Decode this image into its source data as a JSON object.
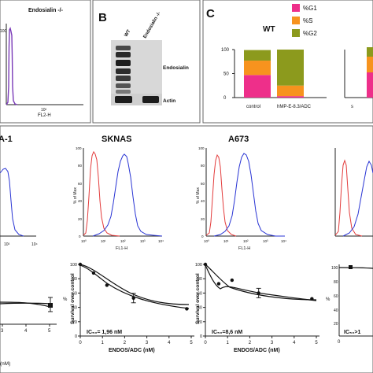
{
  "panelA": {
    "title": "Endosialin -/-",
    "xlabel": "FL2-H",
    "ytick": "100",
    "xtick": "10²"
  },
  "panelB": {
    "letter": "B",
    "lanes": [
      "WT",
      "Endosialin -/-"
    ],
    "bands": [
      "Endosialin",
      "Actin"
    ]
  },
  "panelC": {
    "letter": "C",
    "title": "WT",
    "legend": [
      {
        "label": "%G1",
        "color": "#ee2f8a"
      },
      {
        "label": "%S",
        "color": "#f7931e"
      },
      {
        "label": "%G2",
        "color": "#8c9a1d"
      }
    ],
    "yticks": [
      "0",
      "50",
      "100"
    ],
    "categories": [
      "control",
      "hMP-E-8.3/ADC"
    ],
    "partial_label": "s"
  },
  "histograms": {
    "ylabel": "% of Max",
    "xlabel": "FL1-H",
    "xticks": [
      "10⁰",
      "10¹",
      "10²",
      "10³",
      "10⁴"
    ],
    "yticks": [
      "0",
      "20",
      "40",
      "60",
      "80",
      "100"
    ],
    "titles": [
      "A-1",
      "SKNAS",
      "A673"
    ]
  },
  "survival": {
    "ylabel": "Survival over control",
    "xlabel": "ENDOS/ADC (nM)",
    "ylabel_short": "%",
    "xticks": [
      "0",
      "1",
      "2",
      "3",
      "4",
      "5"
    ],
    "yticks": [
      "0",
      "20",
      "40",
      "60",
      "80",
      "100"
    ],
    "left_xticks": [
      "3",
      "4",
      "5"
    ],
    "left_xlabel": "(nM)",
    "ic50": [
      "IC₅₀= 1,96 nM",
      "IC₅₀=8,6 nM",
      "IC₅₀>1"
    ]
  },
  "chart_data": [
    {
      "type": "bar",
      "title": "WT",
      "categories": [
        "control",
        "hMP-E-8.3/ADC"
      ],
      "ylim": [
        0,
        100
      ],
      "series": [
        {
          "name": "%G1",
          "values": [
            47,
            3
          ]
        },
        {
          "name": "%S",
          "values": [
            30,
            22
          ]
        },
        {
          "name": "%G2",
          "values": [
            22,
            75
          ]
        }
      ]
    },
    {
      "type": "line",
      "title": "SKNAS",
      "xlabel": "ENDOS/ADC (nM)",
      "ylabel": "Survival over control",
      "ylim": [
        0,
        100
      ],
      "xlim": [
        0,
        5
      ],
      "series": [
        {
          "x": [
            0,
            0.6,
            1.2,
            2.4,
            4.8
          ],
          "y": [
            100,
            88,
            71,
            53,
            38
          ]
        }
      ]
    },
    {
      "type": "line",
      "title": "A673",
      "xlabel": "ENDOS/ADC (nM)",
      "ylabel": "Survival over control",
      "ylim": [
        0,
        100
      ],
      "xlim": [
        0,
        5
      ],
      "series": [
        {
          "x": [
            0,
            0.6,
            1.2,
            2.4,
            4.8
          ],
          "y": [
            100,
            73,
            78,
            60,
            52
          ]
        }
      ]
    }
  ]
}
